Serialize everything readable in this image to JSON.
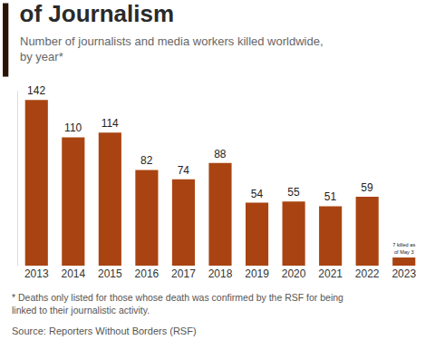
{
  "chart_data": {
    "type": "bar",
    "title": "of Journalism",
    "subtitle": "Number of journalists and media workers killed worldwide, by year*",
    "categories": [
      "2013",
      "2014",
      "2015",
      "2016",
      "2017",
      "2018",
      "2019",
      "2020",
      "2021",
      "2022",
      "2023"
    ],
    "values": [
      142,
      110,
      114,
      82,
      74,
      88,
      54,
      55,
      51,
      59,
      7
    ],
    "value_labels": [
      "142",
      "110",
      "114",
      "82",
      "74",
      "88",
      "54",
      "55",
      "51",
      "59",
      "7 killed as of May 3"
    ],
    "color": "#a94412",
    "ylim": [
      0,
      150
    ],
    "data_labels": true,
    "tick_labels": "x",
    "grid": false,
    "footnote": "* Deaths only listed for those whose death was confirmed by the RSF for being linked to their journalistic activity.",
    "source": "Source: Reporters Without Borders (RSF)"
  }
}
